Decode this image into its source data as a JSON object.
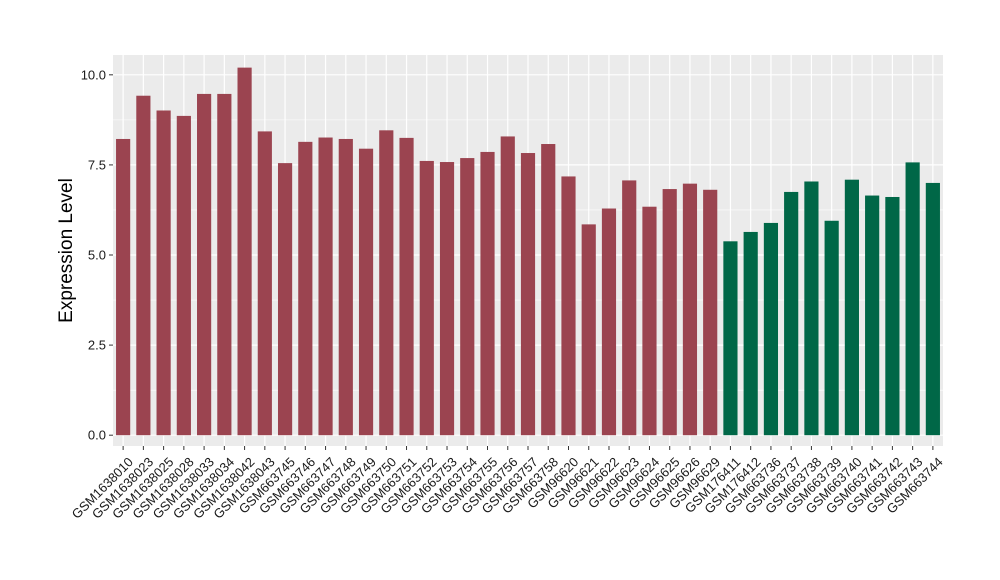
{
  "chart_data": {
    "type": "bar",
    "title": "",
    "xlabel": "",
    "ylabel": "Expression Level",
    "ylim": [
      -0.3,
      10.55
    ],
    "yticks": [
      0.0,
      2.5,
      5.0,
      7.5,
      10.0
    ],
    "ytick_labels": [
      "0.0",
      "2.5",
      "5.0",
      "7.5",
      "10.0"
    ],
    "grid": true,
    "legend": "none",
    "colors": {
      "panel_background": "#ebebeb",
      "grid": "#ffffff",
      "group_1": "#9b4450",
      "group_2": "#006747"
    },
    "categories": [
      "GSM1638010",
      "GSM1638023",
      "GSM1638025",
      "GSM1638028",
      "GSM1638033",
      "GSM1638034",
      "GSM1638042",
      "GSM1638043",
      "GSM663745",
      "GSM663746",
      "GSM663747",
      "GSM663748",
      "GSM663749",
      "GSM663750",
      "GSM663751",
      "GSM663752",
      "GSM663753",
      "GSM663754",
      "GSM663755",
      "GSM663756",
      "GSM663757",
      "GSM663758",
      "GSM96620",
      "GSM96621",
      "GSM96622",
      "GSM96623",
      "GSM96624",
      "GSM96625",
      "GSM96626",
      "GSM96629",
      "GSM176411",
      "GSM176412",
      "GSM663736",
      "GSM663737",
      "GSM663738",
      "GSM663739",
      "GSM663740",
      "GSM663741",
      "GSM663742",
      "GSM663743",
      "GSM663744"
    ],
    "values": [
      8.22,
      9.42,
      9.01,
      8.86,
      9.47,
      9.47,
      10.2,
      8.43,
      7.55,
      8.14,
      8.26,
      8.22,
      7.95,
      8.46,
      8.25,
      7.61,
      7.58,
      7.69,
      7.86,
      8.29,
      7.83,
      8.08,
      7.18,
      5.85,
      6.29,
      7.07,
      6.34,
      6.83,
      6.98,
      6.81,
      5.38,
      5.64,
      5.89,
      6.75,
      7.04,
      5.95,
      7.09,
      6.65,
      6.61,
      7.57,
      7.0
    ],
    "groups": [
      1,
      1,
      1,
      1,
      1,
      1,
      1,
      1,
      1,
      1,
      1,
      1,
      1,
      1,
      1,
      1,
      1,
      1,
      1,
      1,
      1,
      1,
      1,
      1,
      1,
      1,
      1,
      1,
      1,
      1,
      2,
      2,
      2,
      2,
      2,
      2,
      2,
      2,
      2,
      2,
      2
    ]
  }
}
